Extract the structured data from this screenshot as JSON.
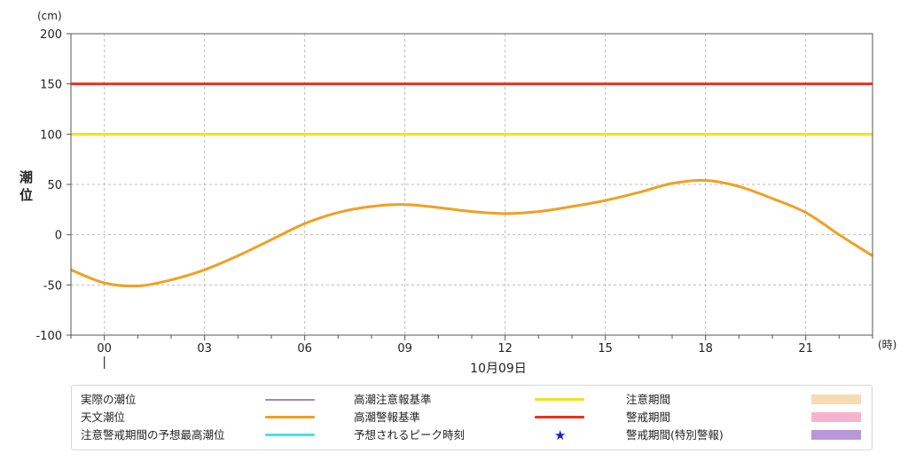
{
  "chart_data": {
    "type": "line",
    "yunit": "(cm)",
    "ylabel": "潮\n位",
    "xunit": "(時)",
    "date_label": "10月09日",
    "ylim": [
      -100,
      200
    ],
    "yticks": [
      200,
      150,
      100,
      50,
      0,
      -50,
      -100
    ],
    "xlim": [
      -1,
      23
    ],
    "xticks": [
      {
        "h": 0,
        "label": "00"
      },
      {
        "h": 3,
        "label": "03"
      },
      {
        "h": 6,
        "label": "06"
      },
      {
        "h": 9,
        "label": "09"
      },
      {
        "h": 12,
        "label": "12"
      },
      {
        "h": 15,
        "label": "15"
      },
      {
        "h": 18,
        "label": "18"
      },
      {
        "h": 21,
        "label": "21"
      }
    ],
    "grid": true,
    "reference_lines": [
      {
        "name": "高潮警報基準",
        "value": 150,
        "color": "#e8321e"
      },
      {
        "name": "高潮注意報基準",
        "value": 100,
        "color": "#f3e11e"
      }
    ],
    "series": [
      {
        "name": "天文潮位",
        "color": "#f0a020",
        "x": [
          -1,
          0,
          1,
          2,
          3,
          4,
          5,
          6,
          7,
          8,
          9,
          10,
          11,
          12,
          13,
          14,
          15,
          16,
          17,
          18,
          19,
          20,
          21,
          22,
          23
        ],
        "y": [
          -35,
          -48,
          -51,
          -45,
          -35,
          -21,
          -5,
          11,
          22,
          28,
          30,
          27,
          23,
          21,
          23,
          28,
          34,
          42,
          51,
          54,
          48,
          36,
          22,
          0,
          -21
        ]
      }
    ]
  },
  "legend": {
    "items": [
      {
        "label": "実際の潮位",
        "kind": "line",
        "color": "#9a89c0",
        "thin": true
      },
      {
        "label": "高潮注意報基準",
        "kind": "line",
        "color": "#f3e11e"
      },
      {
        "label": "注意期間",
        "kind": "box",
        "color": "#fad9b5"
      },
      {
        "label": "天文潮位",
        "kind": "line",
        "color": "#f0a020"
      },
      {
        "label": "高潮警報基準",
        "kind": "line",
        "color": "#e8321e"
      },
      {
        "label": "警戒期間",
        "kind": "box",
        "color": "#f7b3ce"
      },
      {
        "label": "注意警戒期間の予想最高潮位",
        "kind": "line",
        "color": "#3fe6ee"
      },
      {
        "label": "予想されるピーク時刻",
        "kind": "star",
        "color": "#1a1ad6",
        "symbol": "★"
      },
      {
        "label": "警戒期間(特別警報)",
        "kind": "box",
        "color": "#b897d9"
      }
    ]
  }
}
